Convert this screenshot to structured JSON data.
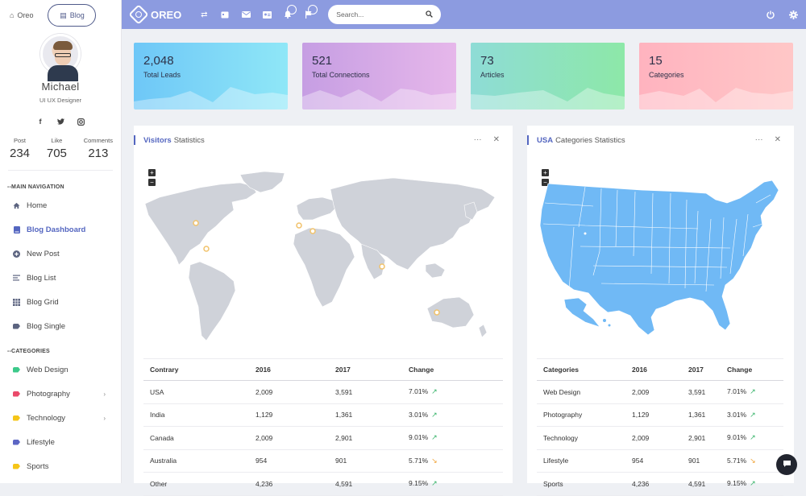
{
  "sidebar": {
    "tab_home": "Oreo",
    "tab_blog": "Blog",
    "profile": {
      "name": "Michael",
      "role": "UI UX Designer"
    },
    "social_icons": [
      "facebook-icon",
      "twitter-icon",
      "instagram-icon"
    ],
    "stats": [
      {
        "label": "Post",
        "value": "234"
      },
      {
        "label": "Like",
        "value": "705"
      },
      {
        "label": "Comments",
        "value": "213"
      }
    ],
    "main_nav_header": "--MAIN NAVIGATION",
    "nav": [
      {
        "label": "Home",
        "icon": "home-icon"
      },
      {
        "label": "Blog Dashboard",
        "icon": "book-icon",
        "active": true
      },
      {
        "label": "New Post",
        "icon": "plus-circle-icon"
      },
      {
        "label": "Blog List",
        "icon": "list-icon"
      },
      {
        "label": "Blog Grid",
        "icon": "grid-icon"
      },
      {
        "label": "Blog Single",
        "icon": "tag-icon"
      }
    ],
    "categories_header": "--CATEGORIES",
    "categories": [
      {
        "label": "Web Design",
        "color": "#3cc98a"
      },
      {
        "label": "Photography",
        "color": "#ea4a6a",
        "chevron": true
      },
      {
        "label": "Technology",
        "color": "#f5c518",
        "chevron": true
      },
      {
        "label": "Lifestyle",
        "color": "#5c66c4"
      },
      {
        "label": "Sports",
        "color": "#f5c518"
      }
    ]
  },
  "topbar": {
    "brand": "OREO",
    "search_placeholder": "Search...",
    "color": "#8c9be0"
  },
  "stat_cards": [
    {
      "value": "2,048",
      "label": "Total Leads",
      "from": "#6ec7f7",
      "to": "#8fe7f7"
    },
    {
      "value": "521",
      "label": "Total Connections",
      "from": "#c69ee3",
      "to": "#e6b7ea"
    },
    {
      "value": "73",
      "label": "Articles",
      "from": "#8edcd6",
      "to": "#8de8a8"
    },
    {
      "value": "15",
      "label": "Categories",
      "from": "#ffb3bf",
      "to": "#ffc7c7"
    }
  ],
  "visitors_panel": {
    "title_bold": "Visitors",
    "title_rest": "Statistics",
    "headers": [
      "Contrary",
      "2016",
      "2017",
      "Change"
    ],
    "rows": [
      {
        "name": "USA",
        "y2016": "2,009",
        "y2017": "3,591",
        "change": "7.01%",
        "trend": "up"
      },
      {
        "name": "India",
        "y2016": "1,129",
        "y2017": "1,361",
        "change": "3.01%",
        "trend": "up"
      },
      {
        "name": "Canada",
        "y2016": "2,009",
        "y2017": "2,901",
        "change": "9.01%",
        "trend": "up"
      },
      {
        "name": "Australia",
        "y2016": "954",
        "y2017": "901",
        "change": "5.71%",
        "trend": "down"
      },
      {
        "name": "Other",
        "y2016": "4,236",
        "y2017": "4,591",
        "change": "9.15%",
        "trend": "up"
      }
    ]
  },
  "usa_panel": {
    "title_bold": "USA",
    "title_rest": "Categories Statistics",
    "headers": [
      "Categories",
      "2016",
      "2017",
      "Change"
    ],
    "rows": [
      {
        "name": "Web Design",
        "y2016": "2,009",
        "y2017": "3,591",
        "change": "7.01%",
        "trend": "up"
      },
      {
        "name": "Photography",
        "y2016": "1,129",
        "y2017": "1,361",
        "change": "3.01%",
        "trend": "up"
      },
      {
        "name": "Technology",
        "y2016": "2,009",
        "y2017": "2,901",
        "change": "9.01%",
        "trend": "up"
      },
      {
        "name": "Lifestyle",
        "y2016": "954",
        "y2017": "901",
        "change": "5.71%",
        "trend": "down"
      },
      {
        "name": "Sports",
        "y2016": "4,236",
        "y2017": "4,591",
        "change": "9.15%",
        "trend": "up"
      }
    ]
  },
  "map_zoom": {
    "in": "+",
    "out": "−"
  },
  "trend_glyphs": {
    "up": "↗",
    "down": "↘"
  }
}
